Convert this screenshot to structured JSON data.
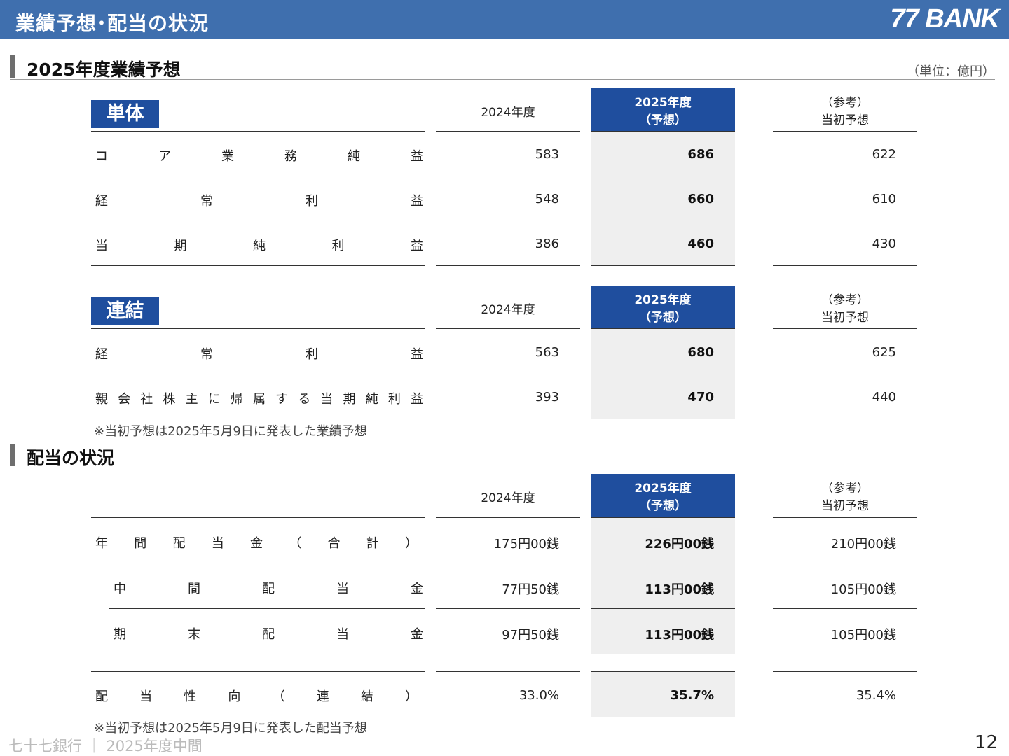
{
  "header": {
    "title": "業績予想･配当の状況",
    "logo": "77 BANK"
  },
  "forecast": {
    "section_title": "2025年度業績予想",
    "unit": "（単位：億円）",
    "columns": {
      "prev": "2024年度",
      "fc_line1": "2025年度",
      "fc_line2": "（予想）",
      "ref_line1": "（参考）",
      "ref_line2": "当初予想"
    },
    "tanntai": {
      "label": "単体",
      "rows": [
        {
          "label": "コア業務純益",
          "prev": "583",
          "fc": "686",
          "ref": "622"
        },
        {
          "label": "経常利益",
          "prev": "548",
          "fc": "660",
          "ref": "610"
        },
        {
          "label": "当期純利益",
          "prev": "386",
          "fc": "460",
          "ref": "430"
        }
      ]
    },
    "renketsu": {
      "label": "連結",
      "rows": [
        {
          "label": "経常利益",
          "prev": "563",
          "fc": "680",
          "ref": "625"
        },
        {
          "label": "親会社株主に帰属する当期純利益",
          "prev": "393",
          "fc": "470",
          "ref": "440"
        }
      ]
    },
    "note": "※当初予想は2025年5月9日に発表した業績予想"
  },
  "dividend": {
    "section_title": "配当の状況",
    "rows": [
      {
        "label": "年間配当金（合計）",
        "prev": "175円00銭",
        "fc": "226円00銭",
        "ref": "210円00銭"
      },
      {
        "label": "中間配当金",
        "prev": "77円50銭",
        "fc": "113円00銭",
        "ref": "105円00銭"
      },
      {
        "label": "期末配当金",
        "prev": "97円50銭",
        "fc": "113円00銭",
        "ref": "105円00銭"
      },
      {
        "label": "配当性向（連結）",
        "prev": "33.0%",
        "fc": "35.7%",
        "ref": "35.4%"
      }
    ],
    "note": "※当初予想は2025年5月9日に発表した配当予想"
  },
  "footer": {
    "text": "七十七銀行 ｜ 2025年度中間",
    "page": "12"
  },
  "colors": {
    "header": "#3f6fae",
    "accent": "#1f4e9e",
    "shade": "#efefef"
  }
}
